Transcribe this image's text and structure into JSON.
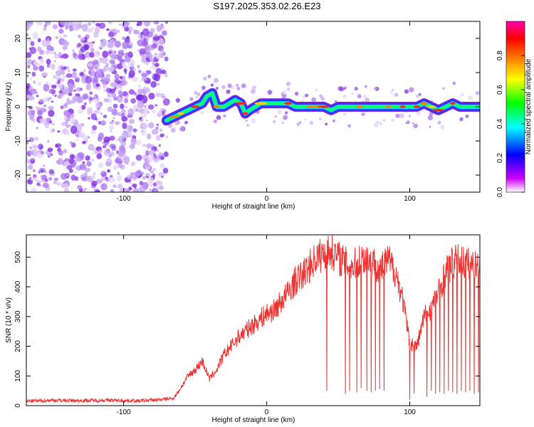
{
  "title": "S197.2025.353.02.26.E23",
  "chart_data": [
    {
      "type": "heatmap",
      "xlabel": "Height of straight line (km)",
      "ylabel": "Frequency (Hz)",
      "xlim": [
        -168,
        149
      ],
      "ylim": [
        -25,
        25
      ],
      "xticks": [
        -100,
        0,
        100
      ],
      "yticks": [
        -20,
        -10,
        0,
        10,
        20
      ],
      "grid": false,
      "noise_region_x": [
        -168,
        -70
      ],
      "ridge": {
        "x": [
          -70,
          -65,
          -60,
          -55,
          -50,
          -45,
          -42,
          -38,
          -35,
          -30,
          -26,
          -22,
          -18,
          -15,
          -12,
          -8,
          -4,
          0,
          5,
          10,
          15,
          20,
          25,
          30,
          35,
          40,
          45,
          50,
          55,
          60,
          65,
          70,
          75,
          80,
          85,
          90,
          95,
          100,
          105,
          110,
          115,
          120,
          125,
          130,
          135,
          140,
          145,
          149
        ],
        "y": [
          -4,
          -3,
          -2,
          -1,
          0,
          1,
          3,
          4,
          0,
          0,
          1,
          2,
          1,
          -2,
          -1,
          0,
          1,
          1,
          1,
          1,
          1,
          0,
          0,
          0,
          0,
          0,
          -1,
          0,
          0,
          0,
          0,
          0,
          0,
          0,
          0,
          0,
          0,
          0,
          0,
          1,
          0,
          -1,
          0,
          1,
          0,
          0,
          0,
          0
        ]
      },
      "colorbar": {
        "label": "Normalized spectral amplitude",
        "range": [
          0,
          1
        ],
        "ticks": [
          0.0,
          0.2,
          0.4,
          0.6,
          0.8
        ],
        "tick_labels": [
          "0.0",
          "0.2",
          "0.4",
          "0.6",
          "0.8"
        ],
        "colors": [
          "#ffffff",
          "#cc00ff",
          "#0000ff",
          "#00ffff",
          "#00ff00",
          "#ffff00",
          "#ff8000",
          "#ff0000",
          "#ff00aa"
        ]
      }
    },
    {
      "type": "line",
      "xlabel": "Height of straight line (km)",
      "ylabel": "SNR (10 * v/v)",
      "xlim": [
        -168,
        149
      ],
      "ylim": [
        0,
        575
      ],
      "xticks": [
        -100,
        0,
        100
      ],
      "yticks": [
        0,
        100,
        200,
        300,
        400,
        500
      ],
      "grid": false,
      "series": [
        {
          "color": "#ee3333",
          "x": [
            -168,
            -150,
            -130,
            -110,
            -90,
            -75,
            -65,
            -60,
            -55,
            -50,
            -45,
            -40,
            -35,
            -30,
            -25,
            -20,
            -15,
            -10,
            -5,
            0,
            5,
            10,
            15,
            20,
            25,
            30,
            35,
            40,
            45,
            50,
            55,
            60,
            65,
            70,
            75,
            80,
            85,
            90,
            95,
            100,
            105,
            110,
            115,
            120,
            125,
            130,
            135,
            140,
            145,
            149
          ],
          "values": [
            15,
            18,
            17,
            18,
            16,
            20,
            25,
            60,
            100,
            120,
            150,
            90,
            120,
            170,
            200,
            230,
            250,
            270,
            290,
            310,
            320,
            350,
            380,
            420,
            440,
            470,
            500,
            510,
            520,
            500,
            480,
            470,
            490,
            500,
            480,
            460,
            490,
            450,
            360,
            210,
            200,
            300,
            330,
            380,
            450,
            480,
            490,
            480,
            470,
            480
          ]
        }
      ],
      "dropouts": {
        "x": [
          42,
          55,
          58,
          63,
          66,
          70,
          73,
          76,
          79,
          82,
          100,
          103,
          112,
          115,
          118,
          121,
          124,
          127,
          130,
          133,
          136,
          139,
          142,
          145,
          148
        ],
        "values": [
          50,
          40,
          50,
          45,
          60,
          50,
          45,
          50,
          55,
          50,
          20,
          40,
          30,
          50,
          40,
          45,
          40,
          50,
          45,
          40,
          50,
          45,
          50,
          40,
          45
        ]
      }
    }
  ]
}
